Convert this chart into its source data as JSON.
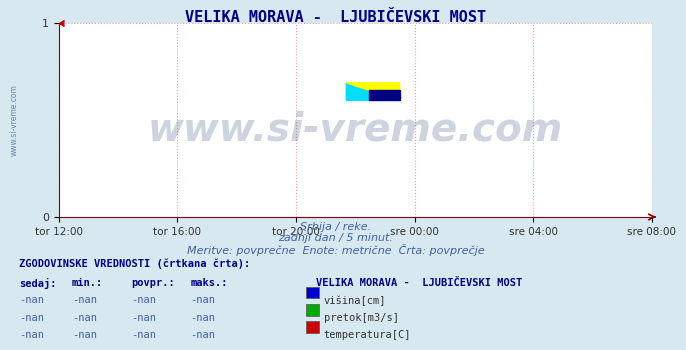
{
  "title": "VELIKA MORAVA -  LJUBIČEVSKI MOST",
  "title_color": "#000080",
  "title_fontsize": 11,
  "bg_color": "#d8e8f0",
  "plot_bg_color": "#ffffff",
  "watermark_text": "www.si-vreme.com",
  "watermark_color": "#1e3f6e",
  "watermark_alpha": 0.22,
  "xlabel_items": [
    "tor 12:00",
    "tor 16:00",
    "tor 20:00",
    "sre 00:00",
    "sre 04:00",
    "sre 08:00"
  ],
  "xlim": [
    0,
    1
  ],
  "ylim": [
    0,
    1
  ],
  "yticks": [
    0,
    1
  ],
  "grid_color": "#ff9999",
  "axis_color": "#800000",
  "text_line1": "Srbija / reke.",
  "text_line2": "zadnji dan / 5 minut.",
  "text_line3": "Meritve: povprečne  Enote: metrične  Črta: povprečje",
  "text_color": "#4060a0",
  "text_fontsize": 8,
  "table_header": "ZGODOVINSKE VREDNOSTI (črtkana črta):",
  "table_cols": [
    "sedaj:",
    "min.:",
    "povpr.:",
    "maks.:"
  ],
  "table_row_value": "-nan",
  "legend_title": "VELIKA MORAVA -  LJUBIČEVSKI MOST",
  "legend_items": [
    {
      "label": "višina[cm]",
      "color": "#0000cc"
    },
    {
      "label": "pretok[m3/s]",
      "color": "#00aa00"
    },
    {
      "label": "temperatura[C]",
      "color": "#cc0000"
    }
  ],
  "sidebar_text": "www.si-vreme.com",
  "sidebar_color": "#4a7090",
  "logo_cyan": "#00ddff",
  "logo_yellow": "#ffff00",
  "logo_blue": "#000080"
}
